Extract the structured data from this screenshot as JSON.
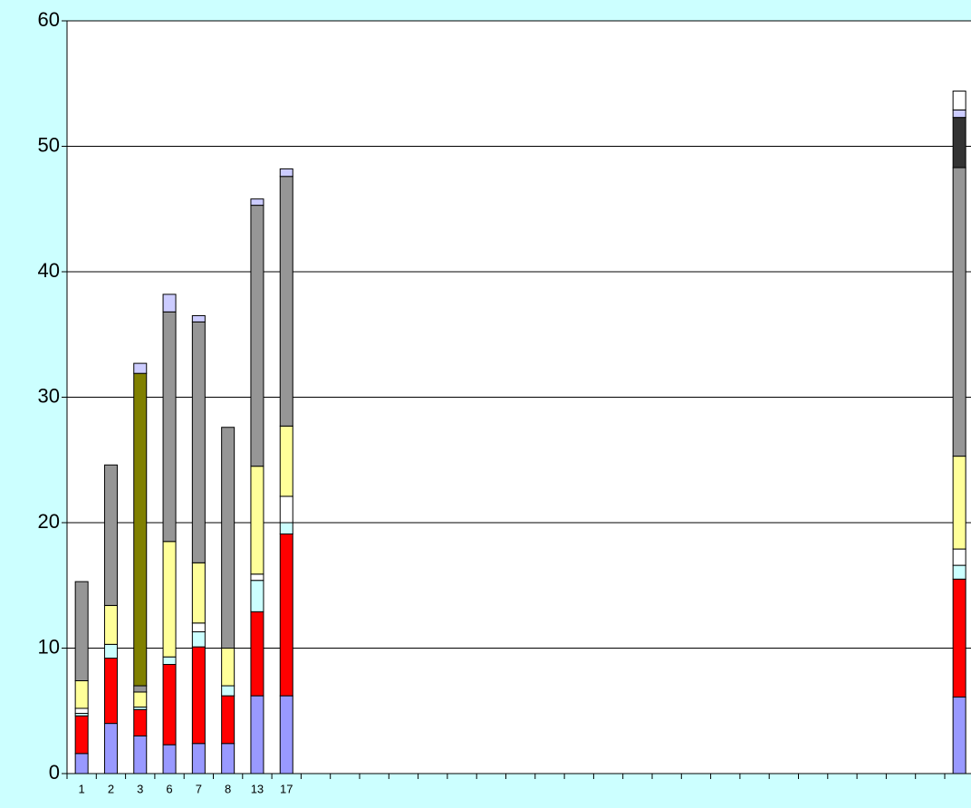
{
  "chart_data": {
    "type": "stacked_bar",
    "categories": [
      "1",
      "2",
      "3",
      "6",
      "7",
      "8",
      "13",
      "17",
      null,
      null,
      null,
      null,
      null,
      null,
      null,
      null,
      null,
      null,
      null,
      null,
      null,
      null,
      null,
      null,
      null,
      null,
      null,
      null,
      null,
      null,
      null
    ],
    "series": [
      {
        "color": "#9999ff",
        "values": [
          1.6,
          4.0,
          3.0,
          2.3,
          2.4,
          2.4,
          6.2,
          6.2,
          null,
          null,
          null,
          null,
          null,
          null,
          null,
          null,
          null,
          null,
          null,
          null,
          null,
          null,
          null,
          null,
          null,
          null,
          null,
          null,
          null,
          null,
          6.1
        ]
      },
      {
        "color": "#ff0000",
        "values": [
          3.0,
          5.2,
          2.1,
          6.4,
          7.7,
          3.8,
          6.7,
          12.9,
          null,
          null,
          null,
          null,
          null,
          null,
          null,
          null,
          null,
          null,
          null,
          null,
          null,
          null,
          null,
          null,
          null,
          null,
          null,
          null,
          null,
          null,
          9.4
        ]
      },
      {
        "color": "#ccffff",
        "values": [
          0.2,
          1.1,
          0.2,
          0.6,
          1.2,
          0.8,
          2.5,
          0.9,
          null,
          null,
          null,
          null,
          null,
          null,
          null,
          null,
          null,
          null,
          null,
          null,
          null,
          null,
          null,
          null,
          null,
          null,
          null,
          null,
          null,
          null,
          1.1
        ]
      },
      {
        "color": "#ffffff",
        "values": [
          0.4,
          0,
          0,
          0,
          0.7,
          0,
          0.5,
          2.1,
          null,
          null,
          null,
          null,
          null,
          null,
          null,
          null,
          null,
          null,
          null,
          null,
          null,
          null,
          null,
          null,
          null,
          null,
          null,
          null,
          null,
          null,
          1.3
        ]
      },
      {
        "color": "#ffff99",
        "values": [
          2.2,
          3.1,
          1.2,
          9.2,
          4.8,
          3.0,
          8.6,
          5.6,
          null,
          null,
          null,
          null,
          null,
          null,
          null,
          null,
          null,
          null,
          null,
          null,
          null,
          null,
          null,
          null,
          null,
          null,
          null,
          null,
          null,
          null,
          7.4
        ]
      },
      {
        "color": "#969696",
        "values": [
          7.9,
          11.2,
          0.5,
          18.3,
          19.2,
          17.6,
          20.8,
          19.9,
          null,
          null,
          null,
          null,
          null,
          null,
          null,
          null,
          null,
          null,
          null,
          null,
          null,
          null,
          null,
          null,
          null,
          null,
          null,
          null,
          null,
          null,
          23.0
        ]
      },
      {
        "color": "#808000",
        "values": [
          0,
          0,
          24.9,
          0,
          0,
          0,
          0,
          0,
          null,
          null,
          null,
          null,
          null,
          null,
          null,
          null,
          null,
          null,
          null,
          null,
          null,
          null,
          null,
          null,
          null,
          null,
          null,
          null,
          null,
          null,
          0
        ]
      },
      {
        "color": "#333333",
        "values": [
          0,
          0,
          0,
          0,
          0,
          0,
          0,
          0,
          null,
          null,
          null,
          null,
          null,
          null,
          null,
          null,
          null,
          null,
          null,
          null,
          null,
          null,
          null,
          null,
          null,
          null,
          null,
          null,
          null,
          null,
          4.0
        ]
      },
      {
        "color": "#ccccff",
        "values": [
          0,
          0,
          0.8,
          1.4,
          0.5,
          0,
          0.5,
          0.6,
          null,
          null,
          null,
          null,
          null,
          null,
          null,
          null,
          null,
          null,
          null,
          null,
          null,
          null,
          null,
          null,
          null,
          null,
          null,
          null,
          null,
          null,
          0.6
        ]
      },
      {
        "color": "#ffffff",
        "values": [
          0,
          0,
          0,
          0,
          0,
          0,
          0,
          0,
          null,
          null,
          null,
          null,
          null,
          null,
          null,
          null,
          null,
          null,
          null,
          null,
          null,
          null,
          null,
          null,
          null,
          null,
          null,
          null,
          null,
          null,
          1.5
        ]
      }
    ],
    "ylim": [
      0,
      60
    ],
    "yticks": [
      0,
      10,
      20,
      30,
      40,
      50,
      60
    ],
    "grid": true
  }
}
